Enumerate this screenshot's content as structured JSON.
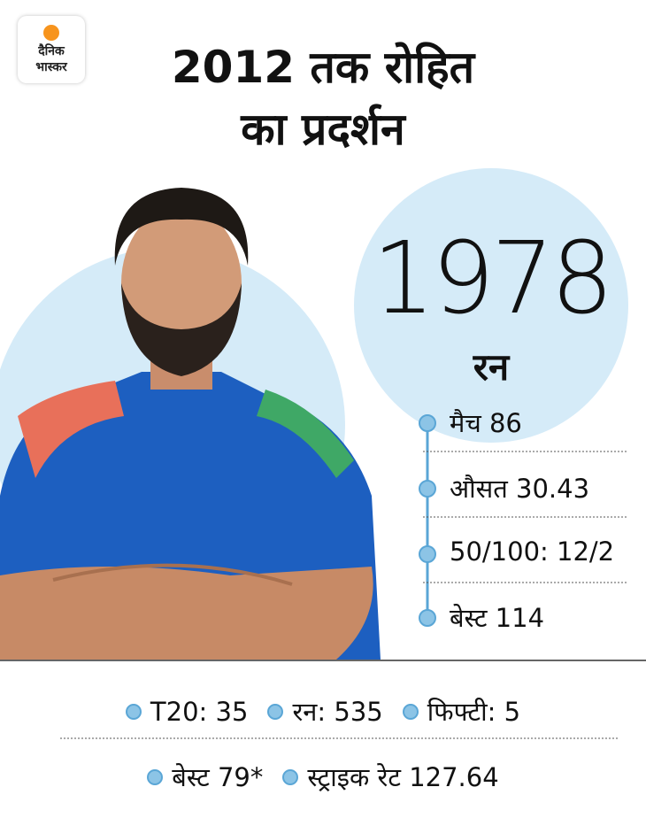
{
  "logo": {
    "lines": [
      "दैनिक",
      "भास्कर"
    ]
  },
  "header": {
    "title_lines": [
      "2012 तक रोहित",
      "का प्रदर्शन"
    ]
  },
  "highlight": {
    "value": "1978",
    "label": "रन"
  },
  "stats": [
    "मैच 86",
    "औसत 30.43",
    "50/100: 12/2",
    "बेस्ट 114"
  ],
  "footer": {
    "rows": [
      [
        "T20: 35",
        "रन: 535",
        "फिफ्टी: 5"
      ],
      [
        "बेस्ट  79*",
        "स्ट्राइक रेट 127.64"
      ]
    ]
  }
}
